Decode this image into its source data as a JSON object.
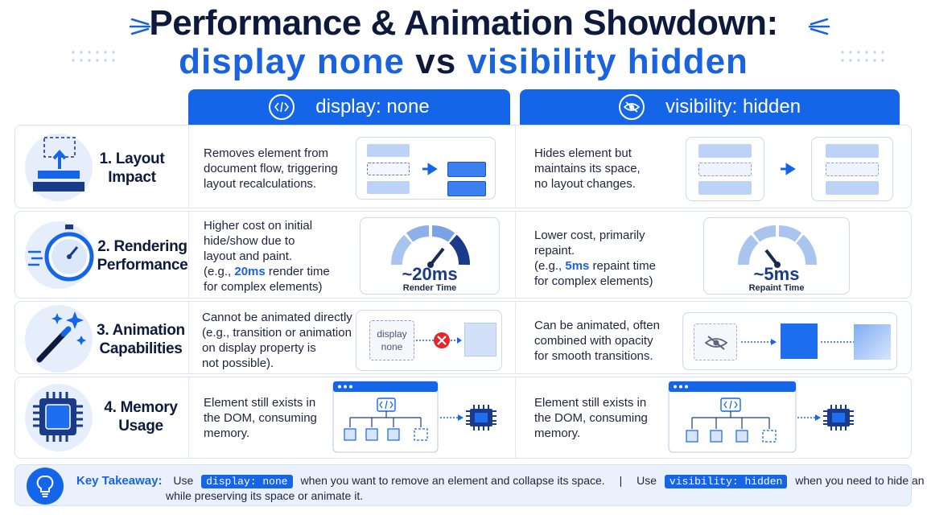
{
  "title": {
    "line1": "Performance & Animation Showdown:",
    "line2_a": "display none",
    "line2_b": "vs",
    "line2_c": "visibility hidden"
  },
  "columns": {
    "left": "display: none",
    "right": "visibility: hidden"
  },
  "rows": [
    {
      "label_1": "1. Layout",
      "label_2": "Impact",
      "left_desc": [
        "Removes element from",
        "document flow, triggering",
        "layout recalculations."
      ],
      "right_desc": [
        "Hides element but",
        "maintains its space,",
        "no layout changes."
      ]
    },
    {
      "label_1": "2. Rendering",
      "label_2": "Performance",
      "left_desc": [
        "Higher cost on initial",
        "hide/show due to",
        "layout and paint."
      ],
      "left_example_pre": "(e.g., ",
      "left_example_val": "20ms",
      "left_example_post": " render time",
      "left_desc_end": "for complex elements)",
      "left_gauge_value": "~20ms",
      "left_gauge_caption": "Render Time",
      "right_desc": [
        "Lower cost, primarily",
        "repaint."
      ],
      "right_example_pre": "(e.g., ",
      "right_example_val": "5ms",
      "right_example_post": " repaint time",
      "right_desc_end": "for complex elements)",
      "right_gauge_value": "~5ms",
      "right_gauge_caption": "Repaint Time"
    },
    {
      "label_1": "3. Animation",
      "label_2": "Capabilities",
      "left_desc": [
        "Cannot be animated directly",
        "(e.g., transition or animation",
        "on display property is",
        "not possible)."
      ],
      "left_box_1": "display",
      "left_box_2": "none",
      "right_desc": [
        "Can be animated, often",
        "combined with opacity",
        "for smooth transitions."
      ]
    },
    {
      "label_1": "4. Memory",
      "label_2": "Usage",
      "left_desc": [
        "Element still exists in",
        "the DOM, consuming",
        "memory."
      ],
      "right_desc": [
        "Element still exists in",
        "the DOM, consuming",
        "memory."
      ]
    }
  ],
  "footer": {
    "label": "Key Takeaway:",
    "use1": "Use",
    "code1": "display: none",
    "text1": "when you want to remove an element and collapse its space.",
    "sep": "|",
    "use2": "Use",
    "code2": "visibility: hidden",
    "text2": "when you need to hide an element",
    "text3": "while preserving its space or animate it."
  },
  "icons": {
    "code": "code-icon",
    "eye_slash": "eye-slash-icon",
    "layers": "layers-icon",
    "stopwatch": "stopwatch-icon",
    "wand": "magic-wand-icon",
    "chip": "chip-icon",
    "bulb": "lightbulb-icon"
  },
  "colors": {
    "accent": "#1565e8",
    "dark": "#0d1a3c",
    "light_bar": "#bcd3f7"
  }
}
